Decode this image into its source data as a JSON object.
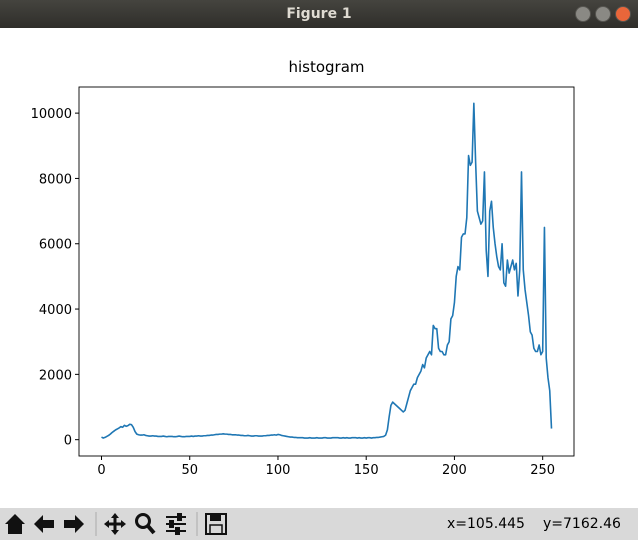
{
  "window": {
    "title": "Figure 1"
  },
  "chart_data": {
    "type": "line",
    "title": "histogram",
    "color": "#1f77b4",
    "x": [
      0,
      1,
      2,
      3,
      4,
      5,
      6,
      7,
      8,
      9,
      10,
      11,
      12,
      13,
      14,
      15,
      16,
      17,
      18,
      19,
      20,
      21,
      22,
      23,
      24,
      25,
      26,
      27,
      28,
      29,
      30,
      31,
      32,
      33,
      34,
      35,
      36,
      37,
      38,
      39,
      40,
      41,
      42,
      43,
      44,
      45,
      46,
      47,
      48,
      49,
      50,
      51,
      52,
      53,
      54,
      55,
      56,
      57,
      58,
      59,
      60,
      61,
      62,
      63,
      64,
      65,
      66,
      67,
      68,
      69,
      70,
      71,
      72,
      73,
      74,
      75,
      76,
      77,
      78,
      79,
      80,
      81,
      82,
      83,
      84,
      85,
      86,
      87,
      88,
      89,
      90,
      91,
      92,
      93,
      94,
      95,
      96,
      97,
      98,
      99,
      100,
      101,
      102,
      103,
      104,
      105,
      106,
      107,
      108,
      109,
      110,
      111,
      112,
      113,
      114,
      115,
      116,
      117,
      118,
      119,
      120,
      121,
      122,
      123,
      124,
      125,
      126,
      127,
      128,
      129,
      130,
      131,
      132,
      133,
      134,
      135,
      136,
      137,
      138,
      139,
      140,
      141,
      142,
      143,
      144,
      145,
      146,
      147,
      148,
      149,
      150,
      151,
      152,
      153,
      154,
      155,
      156,
      157,
      158,
      159,
      160,
      161,
      162,
      163,
      164,
      165,
      166,
      167,
      168,
      169,
      170,
      171,
      172,
      173,
      174,
      175,
      176,
      177,
      178,
      179,
      180,
      181,
      182,
      183,
      184,
      185,
      186,
      187,
      188,
      189,
      190,
      191,
      192,
      193,
      194,
      195,
      196,
      197,
      198,
      199,
      200,
      201,
      202,
      203,
      204,
      205,
      206,
      207,
      208,
      209,
      210,
      211,
      212,
      213,
      214,
      215,
      216,
      217,
      218,
      219,
      220,
      221,
      222,
      223,
      224,
      225,
      226,
      227,
      228,
      229,
      230,
      231,
      232,
      233,
      234,
      235,
      236,
      237,
      238,
      239,
      240,
      241,
      242,
      243,
      244,
      245,
      246,
      247,
      248,
      249,
      250,
      251,
      252,
      253,
      254,
      255
    ],
    "values": [
      80,
      50,
      70,
      100,
      130,
      170,
      220,
      260,
      300,
      330,
      360,
      400,
      380,
      440,
      410,
      430,
      470,
      460,
      380,
      250,
      170,
      150,
      140,
      140,
      150,
      130,
      120,
      110,
      110,
      120,
      110,
      110,
      100,
      100,
      100,
      110,
      100,
      90,
      100,
      100,
      100,
      90,
      90,
      100,
      110,
      100,
      90,
      90,
      100,
      100,
      100,
      110,
      100,
      110,
      110,
      120,
      110,
      110,
      120,
      120,
      130,
      130,
      140,
      140,
      150,
      160,
      160,
      170,
      170,
      180,
      170,
      170,
      160,
      160,
      150,
      150,
      150,
      140,
      140,
      130,
      130,
      120,
      120,
      130,
      120,
      110,
      110,
      120,
      120,
      110,
      110,
      110,
      120,
      120,
      130,
      130,
      140,
      140,
      150,
      140,
      160,
      150,
      130,
      120,
      110,
      100,
      90,
      80,
      80,
      70,
      70,
      60,
      60,
      60,
      60,
      50,
      50,
      50,
      60,
      50,
      50,
      50,
      60,
      50,
      50,
      50,
      60,
      60,
      50,
      50,
      50,
      60,
      60,
      60,
      60,
      50,
      50,
      60,
      50,
      60,
      50,
      50,
      60,
      60,
      60,
      50,
      60,
      50,
      50,
      60,
      50,
      60,
      60,
      50,
      60,
      60,
      70,
      70,
      80,
      90,
      100,
      140,
      300,
      700,
      1050,
      1150,
      1100,
      1050,
      1000,
      950,
      900,
      850,
      900,
      1100,
      1300,
      1500,
      1600,
      1700,
      1700,
      1900,
      2000,
      2100,
      2300,
      2200,
      2500,
      2600,
      2700,
      2600,
      3500,
      3400,
      3400,
      2800,
      2700,
      2700,
      2600,
      2600,
      2900,
      3000,
      3700,
      3800,
      4200,
      5000,
      5300,
      5200,
      6200,
      6300,
      6300,
      6800,
      8700,
      8400,
      8500,
      10300,
      8500,
      7000,
      6800,
      6600,
      6700,
      8200,
      5800,
      5000,
      7000,
      7300,
      6500,
      6000,
      5600,
      5300,
      5200,
      6000,
      4800,
      4700,
      5500,
      5100,
      5300,
      5500,
      5200,
      5400,
      4400,
      5200,
      8200,
      5200,
      4600,
      4200,
      3800,
      3300,
      3200,
      2800,
      2700,
      2700,
      2900,
      2600,
      2700,
      6500,
      2500,
      1900,
      1500,
      340
    ],
    "xlim": [
      -12.75,
      267.75
    ],
    "xticks": [
      0,
      50,
      100,
      150,
      200,
      250
    ],
    "ylim": [
      -500,
      10800
    ],
    "yticks": [
      0,
      2000,
      4000,
      6000,
      8000,
      10000
    ]
  },
  "status": {
    "x": "x=105.445",
    "y": "y=7162.46"
  }
}
